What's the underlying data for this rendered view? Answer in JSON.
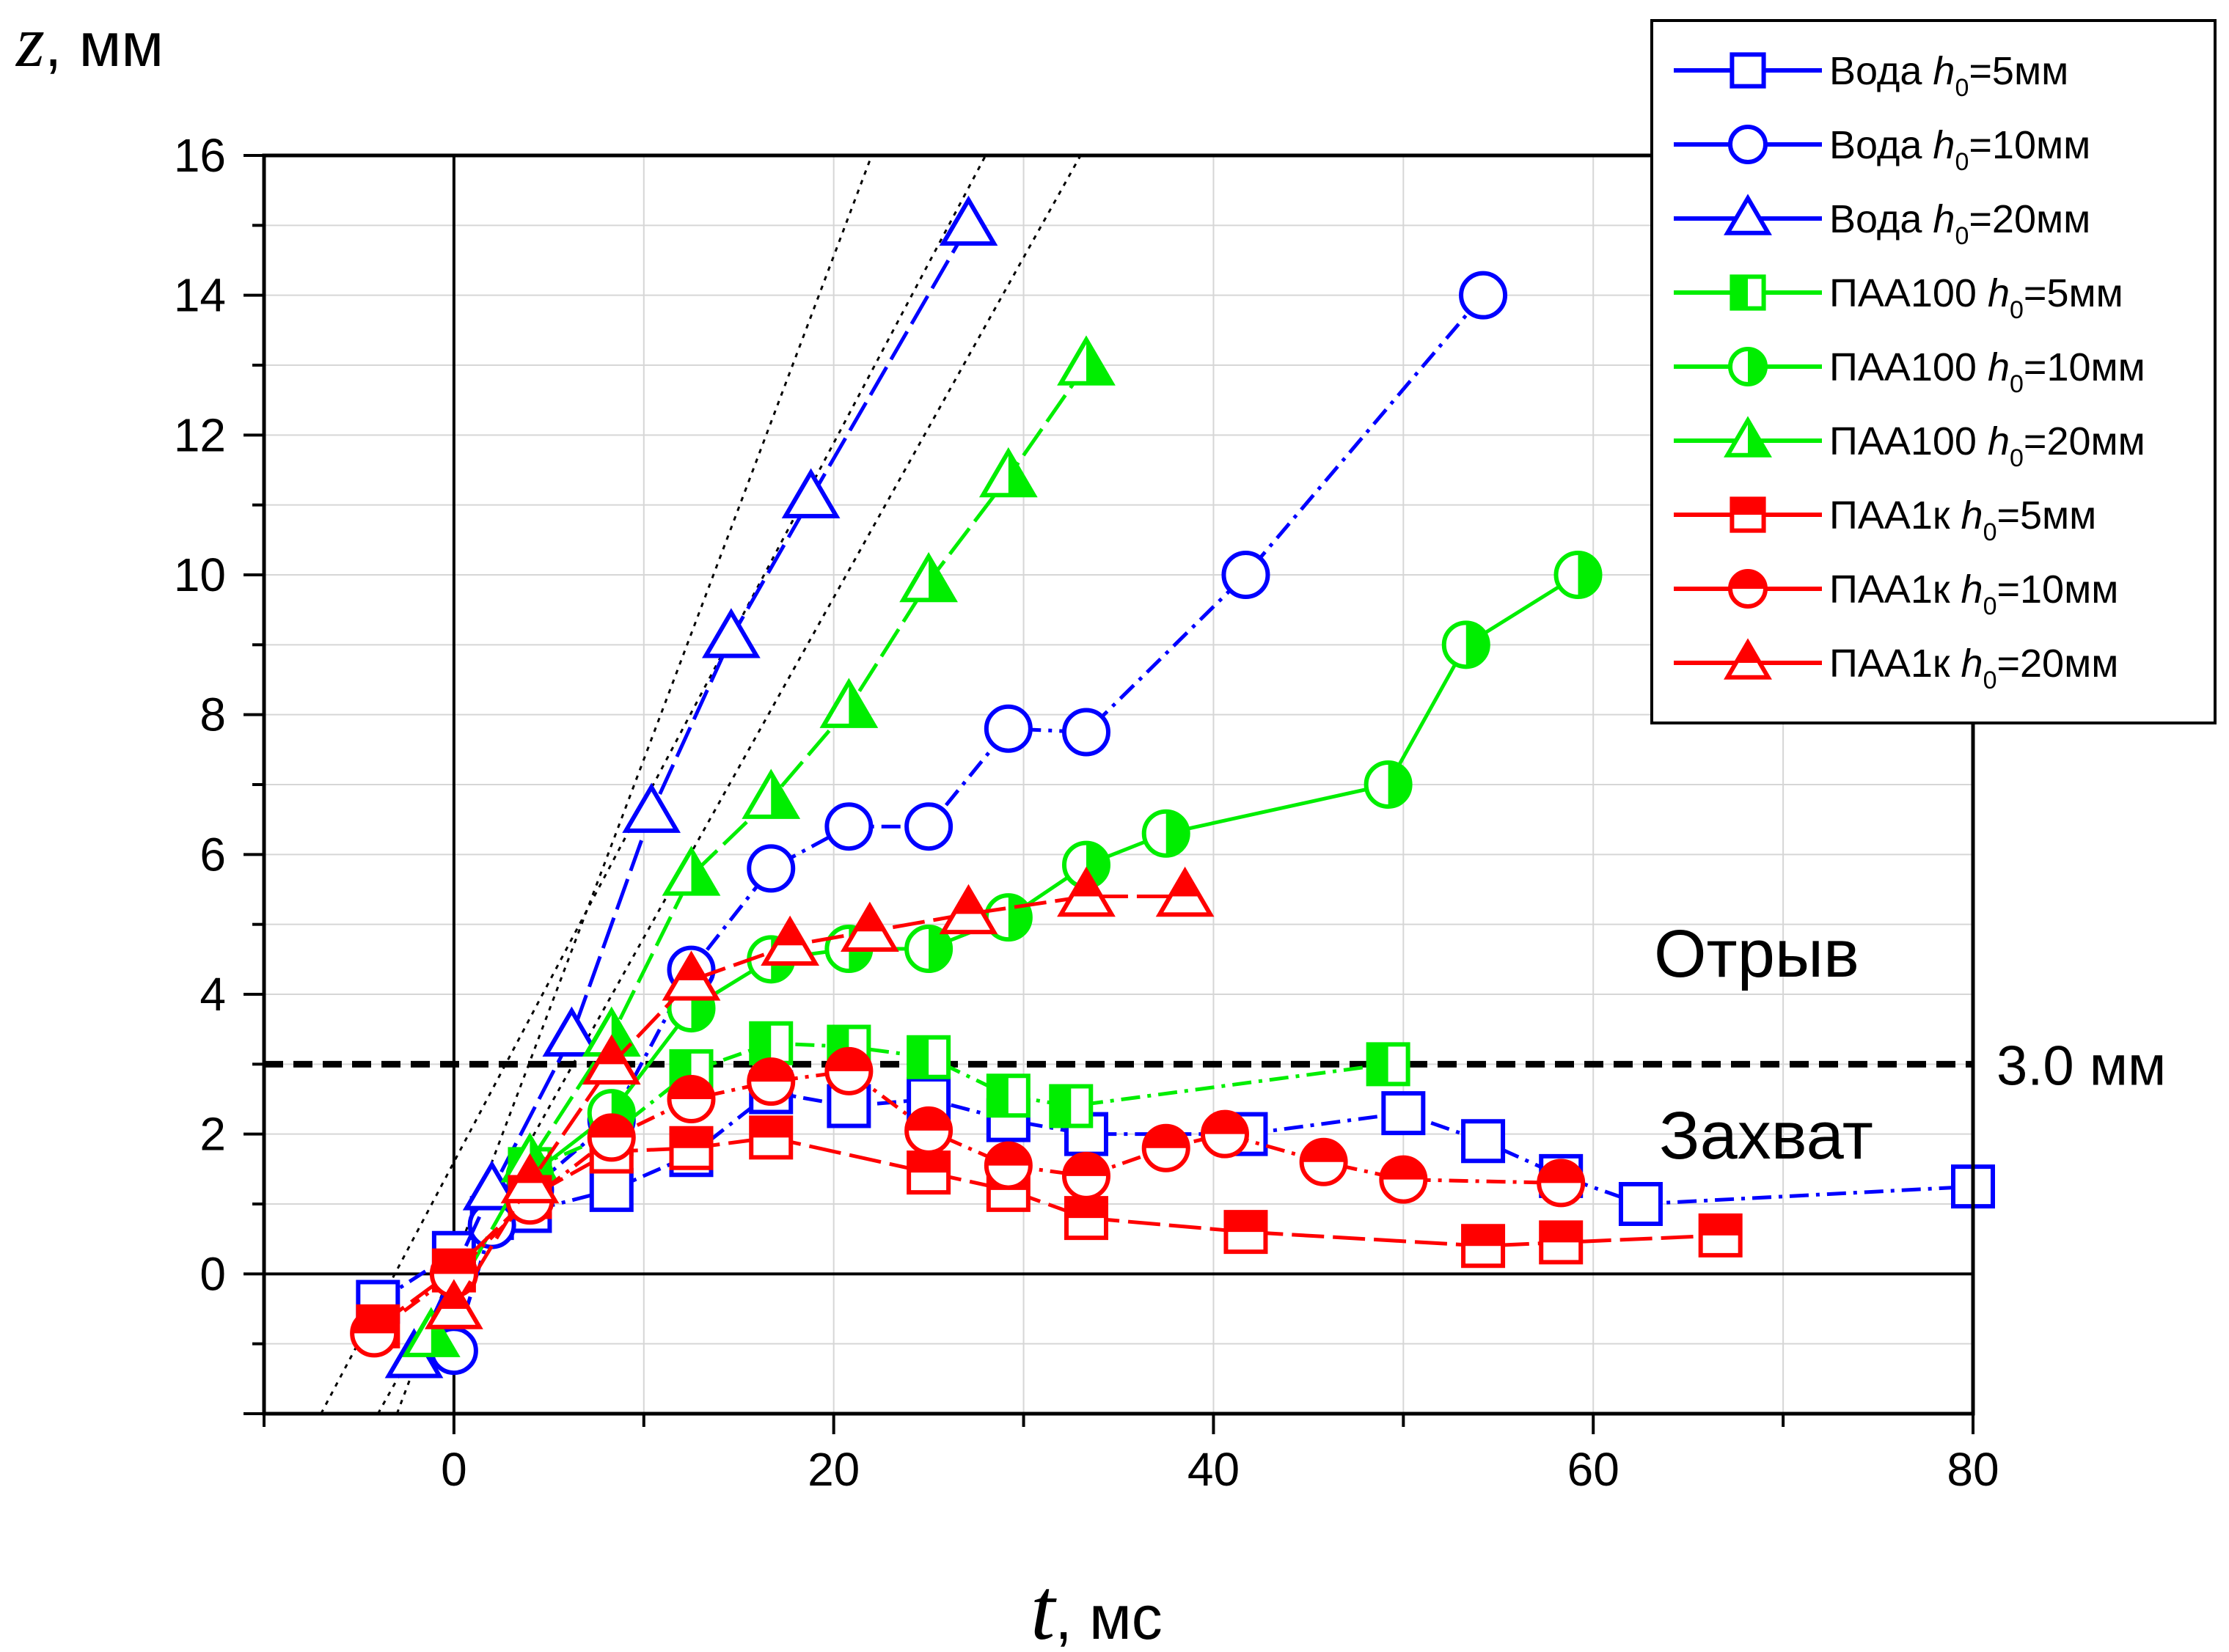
{
  "chart_data": {
    "type": "line",
    "xlabel": {
      "var": "t",
      "unit": ", мс"
    },
    "ylabel": {
      "var": "z",
      "unit": ", мм"
    },
    "xlim": [
      -10,
      80
    ],
    "ylim": [
      -2,
      16
    ],
    "x_ticks": [
      0,
      20,
      40,
      60,
      80
    ],
    "y_ticks": [
      0,
      2,
      4,
      6,
      8,
      10,
      12,
      14,
      16
    ],
    "grid": true,
    "legend_position": "top-right",
    "threshold": {
      "y": 3.0,
      "label": "3.0 мм"
    },
    "annotations": [
      {
        "text": "Отрыв",
        "x": 67,
        "y": 4.2
      },
      {
        "text": "Захват",
        "x": 67,
        "y": 2.0
      }
    ],
    "guide_lines": [
      {
        "from": [
          -7,
          -2
        ],
        "to": [
          28,
          16
        ]
      },
      {
        "from": [
          -4,
          -2
        ],
        "to": [
          33,
          16
        ]
      },
      {
        "from": [
          -3,
          -2
        ],
        "to": [
          22,
          16
        ]
      }
    ],
    "series": [
      {
        "label": "Вода",
        "h0": "=5мм",
        "color": "#0000ff",
        "marker": "square",
        "fill": "none",
        "dash": "dash-dot",
        "points": [
          [
            -4,
            -0.4
          ],
          [
            0,
            0.3
          ],
          [
            2,
            0.8
          ],
          [
            4,
            0.9
          ],
          [
            8.3,
            1.2
          ],
          [
            12.5,
            1.7
          ],
          [
            16.7,
            2.6
          ],
          [
            20.8,
            2.4
          ],
          [
            25,
            2.5
          ],
          [
            29.2,
            2.2
          ],
          [
            33.3,
            2.0
          ],
          [
            41.7,
            2.0
          ],
          [
            50,
            2.3
          ],
          [
            54.2,
            1.9
          ],
          [
            58.3,
            1.4
          ],
          [
            62.5,
            1.0
          ],
          [
            80,
            1.25
          ]
        ]
      },
      {
        "label": "Вода",
        "h0": "=10мм",
        "color": "#0000ff",
        "marker": "circle",
        "fill": "none",
        "dash": "dash-dot",
        "points": [
          [
            0,
            -1.1
          ],
          [
            2,
            0.7
          ],
          [
            4,
            1.2
          ],
          [
            8.3,
            2.2
          ],
          [
            12.5,
            4.35
          ],
          [
            16.7,
            5.8
          ],
          [
            20.8,
            6.4
          ],
          [
            25,
            6.4
          ],
          [
            29.2,
            7.8
          ],
          [
            33.3,
            7.75
          ],
          [
            41.7,
            10
          ],
          [
            54.2,
            14
          ]
        ]
      },
      {
        "label": "Вода",
        "h0": "=20мм",
        "color": "#0000ff",
        "marker": "triangle",
        "fill": "none",
        "dash": "long-dash",
        "points": [
          [
            -2.1,
            -1.2
          ],
          [
            2,
            1.2
          ],
          [
            6.2,
            3.4
          ],
          [
            10.4,
            6.6
          ],
          [
            14.6,
            9.1
          ],
          [
            18.8,
            11.1
          ],
          [
            27.1,
            15
          ]
        ]
      },
      {
        "label": "ПАА100",
        "h0": "=5мм",
        "color": "#00ee00",
        "marker": "square",
        "fill": "left",
        "dash": "dash-dot",
        "points": [
          [
            4,
            1.5
          ],
          [
            8.3,
            2.0
          ],
          [
            12.5,
            2.9
          ],
          [
            16.7,
            3.3
          ],
          [
            20.8,
            3.25
          ],
          [
            25,
            3.1
          ],
          [
            29.2,
            2.55
          ],
          [
            32.5,
            2.4
          ],
          [
            49.2,
            3.0
          ]
        ]
      },
      {
        "label": "ПАА100",
        "h0": "=10мм",
        "color": "#00ee00",
        "marker": "circle",
        "fill": "right",
        "dash": "solid",
        "points": [
          [
            4,
            1.4
          ],
          [
            8.3,
            2.3
          ],
          [
            12.5,
            3.8
          ],
          [
            16.7,
            4.5
          ],
          [
            20.8,
            4.65
          ],
          [
            25,
            4.65
          ],
          [
            29.2,
            5.1
          ],
          [
            33.3,
            5.85
          ],
          [
            37.5,
            6.3
          ],
          [
            49.2,
            7.0
          ],
          [
            53.3,
            9.0
          ],
          [
            59.2,
            10.0
          ]
        ]
      },
      {
        "label": "ПАА100",
        "h0": "=20мм",
        "color": "#00ee00",
        "marker": "triangle",
        "fill": "right",
        "dash": "long-dash",
        "points": [
          [
            -1.2,
            -0.9
          ],
          [
            4,
            1.6
          ],
          [
            8.3,
            3.4
          ],
          [
            12.5,
            5.7
          ],
          [
            16.7,
            6.8
          ],
          [
            20.8,
            8.1
          ],
          [
            25,
            9.9
          ],
          [
            29.2,
            11.4
          ],
          [
            33.3,
            13.0
          ]
        ]
      },
      {
        "label": "ПАА1к",
        "h0": "=5мм",
        "color": "#ff0000",
        "marker": "square",
        "fill": "top",
        "dash": "long-dash",
        "points": [
          [
            -4,
            -0.75
          ],
          [
            0,
            0.05
          ],
          [
            4,
            1.1
          ],
          [
            8.3,
            1.75
          ],
          [
            12.5,
            1.8
          ],
          [
            16.7,
            1.95
          ],
          [
            25,
            1.45
          ],
          [
            29.2,
            1.2
          ],
          [
            33.3,
            0.8
          ],
          [
            41.7,
            0.6
          ],
          [
            54.2,
            0.4
          ],
          [
            58.3,
            0.45
          ],
          [
            66.7,
            0.55
          ]
        ]
      },
      {
        "label": "ПАА1к",
        "h0": "=10мм",
        "color": "#ff0000",
        "marker": "circle",
        "fill": "top",
        "dash": "dash-dot",
        "points": [
          [
            -4.2,
            -0.85
          ],
          [
            0,
            0
          ],
          [
            4,
            1.05
          ],
          [
            8.3,
            1.95
          ],
          [
            12.5,
            2.5
          ],
          [
            16.7,
            2.75
          ],
          [
            20.8,
            2.9
          ],
          [
            25,
            2.05
          ],
          [
            29.2,
            1.55
          ],
          [
            33.3,
            1.4
          ],
          [
            37.5,
            1.8
          ],
          [
            40.6,
            2.0
          ],
          [
            45.8,
            1.6
          ],
          [
            50,
            1.35
          ],
          [
            58.3,
            1.3
          ]
        ]
      },
      {
        "label": "ПАА1к",
        "h0": "=20мм",
        "color": "#ff0000",
        "marker": "triangle",
        "fill": "top",
        "dash": "long-dash",
        "points": [
          [
            0,
            -0.5
          ],
          [
            4,
            1.3
          ],
          [
            8.3,
            3.0
          ],
          [
            12.5,
            4.2
          ],
          [
            17.7,
            4.7
          ],
          [
            21.9,
            4.9
          ],
          [
            27.1,
            5.15
          ],
          [
            33.3,
            5.4
          ],
          [
            38.5,
            5.4
          ]
        ]
      }
    ]
  }
}
